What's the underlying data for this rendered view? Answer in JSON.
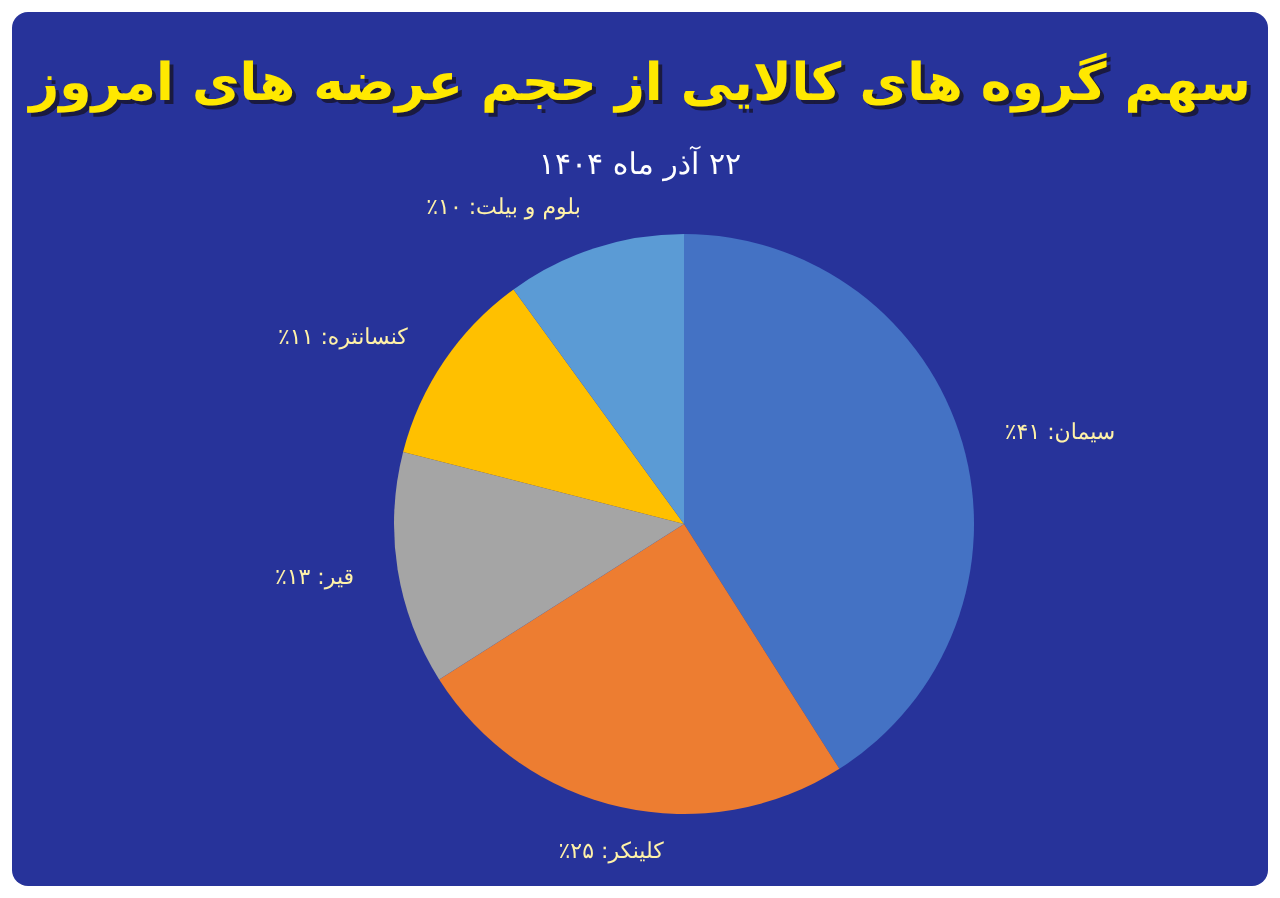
{
  "chart_data": {
    "type": "pie",
    "title": "سهم گروه های کالایی از حجم عرضه های امروز",
    "subtitle": "۲۲ آذر ماه ۱۴۰۴",
    "categories": [
      "سیمان",
      "کلینکر",
      "قیر",
      "کنسانتره",
      "بلوم و بیلت"
    ],
    "values": [
      41,
      25,
      13,
      11,
      10
    ],
    "colors": [
      "#4472c4",
      "#ed7d31",
      "#a5a5a5",
      "#ffc000",
      "#5b9bd5"
    ],
    "value_labels": [
      "۴۱٪",
      "۲۵٪",
      "۱۳٪",
      "۱۱٪",
      "۱۰٪"
    ],
    "legend": false
  }
}
